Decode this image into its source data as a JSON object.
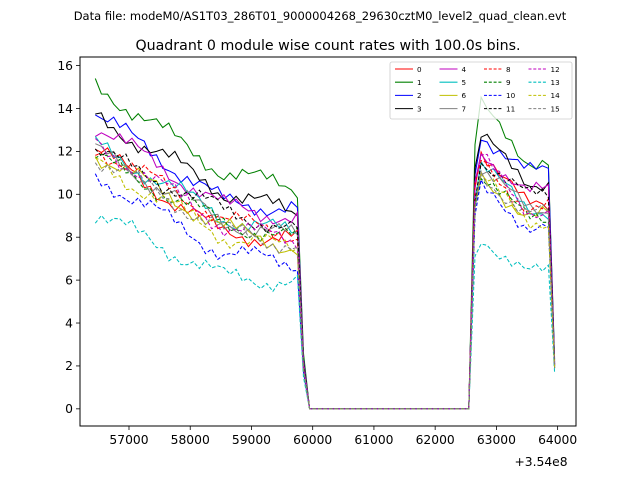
{
  "figure": {
    "suptitle": "Data file: modeM0/AS1T03_286T01_9000004268_29630cztM0_level2_quad_clean.evt"
  },
  "chart_data": {
    "type": "line",
    "title": "Quadrant 0 module wise count rates with 100.0s bins.",
    "xlabel": "",
    "ylabel": "",
    "x_offset_label": "+3.54e8",
    "xlim": [
      56200,
      64300
    ],
    "ylim": [
      -0.8,
      16.4
    ],
    "xticks": [
      57000,
      58000,
      59000,
      60000,
      61000,
      62000,
      63000,
      64000
    ],
    "xtick_labels": [
      "57000",
      "58000",
      "59000",
      "60000",
      "61000",
      "62000",
      "63000",
      "64000"
    ],
    "yticks": [
      0,
      2,
      4,
      6,
      8,
      10,
      12,
      14,
      16
    ],
    "ytick_labels": [
      "0",
      "2",
      "4",
      "6",
      "8",
      "10",
      "12",
      "14",
      "16"
    ],
    "legend_position": "upper right",
    "legend_columns": 4,
    "series": [
      {
        "name": "0",
        "color": "#ff0000",
        "style": "solid",
        "start": 12.1,
        "mid": 8.2,
        "end1": 7.9,
        "rise": 12.5,
        "end2": 9.4,
        "final": 2.0
      },
      {
        "name": "1",
        "color": "#008000",
        "style": "solid",
        "start": 15.1,
        "mid": 11.1,
        "end1": 10.3,
        "rise": 14.4,
        "end2": 11.6,
        "final": 2.3
      },
      {
        "name": "2",
        "color": "#0000ff",
        "style": "solid",
        "start": 13.8,
        "mid": 9.7,
        "end1": 9.3,
        "rise": 13.1,
        "end2": 11.0,
        "final": 2.2
      },
      {
        "name": "3",
        "color": "#000000",
        "style": "solid",
        "start": 13.6,
        "mid": 10.2,
        "end1": 9.1,
        "rise": 12.9,
        "end2": 10.6,
        "final": 2.1
      },
      {
        "name": "4",
        "color": "#bf00bf",
        "style": "solid",
        "start": 13.2,
        "mid": 9.5,
        "end1": 8.9,
        "rise": 12.3,
        "end2": 10.1,
        "final": 2.1
      },
      {
        "name": "5",
        "color": "#00bfbf",
        "style": "solid",
        "start": 12.3,
        "mid": 9.0,
        "end1": 8.1,
        "rise": 11.6,
        "end2": 9.3,
        "final": 2.0
      },
      {
        "name": "6",
        "color": "#bfbf00",
        "style": "solid",
        "start": 11.9,
        "mid": 8.5,
        "end1": 7.5,
        "rise": 11.1,
        "end2": 9.0,
        "final": 1.9
      },
      {
        "name": "7",
        "color": "#808080",
        "style": "solid",
        "start": 12.0,
        "mid": 8.8,
        "end1": 8.0,
        "rise": 11.4,
        "end2": 9.3,
        "final": 2.0
      },
      {
        "name": "8",
        "color": "#ff0000",
        "style": "dashed",
        "start": 12.2,
        "mid": 8.9,
        "end1": 8.1,
        "rise": 11.8,
        "end2": 9.4,
        "final": 2.0
      },
      {
        "name": "9",
        "color": "#008000",
        "style": "dashed",
        "start": 11.7,
        "mid": 8.7,
        "end1": 7.9,
        "rise": 11.3,
        "end2": 8.8,
        "final": 1.9
      },
      {
        "name": "10",
        "color": "#0000ff",
        "style": "dashed",
        "start": 10.9,
        "mid": 7.3,
        "end1": 6.8,
        "rise": 10.4,
        "end2": 8.6,
        "final": 1.9
      },
      {
        "name": "11",
        "color": "#000000",
        "style": "dashed",
        "start": 12.0,
        "mid": 9.3,
        "end1": 8.3,
        "rise": 11.9,
        "end2": 9.9,
        "final": 2.0
      },
      {
        "name": "12",
        "color": "#bf00bf",
        "style": "dashed",
        "start": 12.4,
        "mid": 8.6,
        "end1": 7.8,
        "rise": 12.0,
        "end2": 9.3,
        "final": 2.0
      },
      {
        "name": "13",
        "color": "#00bfbf",
        "style": "dashed",
        "start": 9.1,
        "mid": 6.2,
        "end1": 5.9,
        "rise": 8.3,
        "end2": 6.3,
        "final": 1.7
      },
      {
        "name": "14",
        "color": "#bfbf00",
        "style": "dashed",
        "start": 11.5,
        "mid": 8.1,
        "end1": 7.4,
        "rise": 11.0,
        "end2": 8.8,
        "final": 1.9
      },
      {
        "name": "15",
        "color": "#808080",
        "style": "dashed",
        "start": 11.7,
        "mid": 8.4,
        "end1": 7.6,
        "rise": 11.2,
        "end2": 9.1,
        "final": 1.9
      }
    ]
  }
}
